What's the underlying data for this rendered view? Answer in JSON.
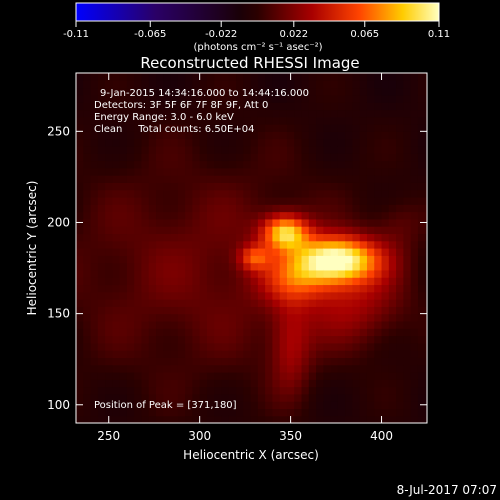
{
  "chart_data": {
    "type": "heatmap",
    "title": "Reconstructed RHESSI Image",
    "xlabel": "Heliocentric X (arcsec)",
    "ylabel": "Heliocentric Y (arcsec)",
    "xlim": [
      232,
      425
    ],
    "ylim": [
      90,
      282
    ],
    "x_ticks": [
      250,
      300,
      350,
      400
    ],
    "y_ticks": [
      100,
      150,
      200,
      250
    ],
    "colorbar": {
      "min": -0.11,
      "max": 0.11,
      "ticks": [
        "-0.11",
        "-0.065",
        "-0.022",
        "0.022",
        "0.065",
        "0.11"
      ],
      "unit_label": "(photons cm⁻² s⁻¹ asec⁻²)"
    },
    "annotations": [
      "9-Jan-2015 14:34:16.000 to 14:44:16.000",
      "Detectors: 3F 5F 6F 7F 8F 9F, Att 0",
      "Energy Range: 3.0 - 6.0 keV",
      "Clean     Total counts: 6.50E+04"
    ],
    "peak_text": "Position of Peak = [371,180]",
    "peak": [
      371,
      180
    ],
    "sources": [
      {
        "x": 375,
        "y": 180,
        "sx": 17,
        "sy": 9,
        "amp": 0.11
      },
      {
        "x": 347,
        "y": 195,
        "sx": 9,
        "sy": 7,
        "amp": 0.085
      },
      {
        "x": 330,
        "y": 181,
        "sx": 6,
        "sy": 5,
        "amp": 0.045
      },
      {
        "x": 352,
        "y": 168,
        "sx": 14,
        "sy": 9,
        "amp": 0.035
      },
      {
        "x": 385,
        "y": 156,
        "sx": 20,
        "sy": 16,
        "amp": 0.03
      },
      {
        "x": 350,
        "y": 132,
        "sx": 8,
        "sy": 18,
        "amp": 0.03
      },
      {
        "x": 410,
        "y": 200,
        "sx": 10,
        "sy": 10,
        "amp": 0.015
      },
      {
        "x": 300,
        "y": 175,
        "sx": 60,
        "sy": 45,
        "amp": 0.022
      }
    ],
    "timestamp": "8-Jul-2017 07:07"
  }
}
